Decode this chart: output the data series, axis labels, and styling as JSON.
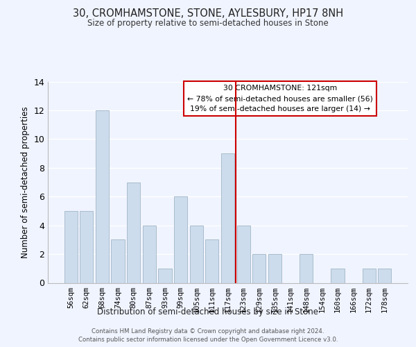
{
  "title": "30, CROMHAMSTONE, STONE, AYLESBURY, HP17 8NH",
  "subtitle": "Size of property relative to semi-detached houses in Stone",
  "xlabel": "Distribution of semi-detached houses by size in Stone",
  "ylabel": "Number of semi-detached properties",
  "categories": [
    "56sqm",
    "62sqm",
    "68sqm",
    "74sqm",
    "80sqm",
    "87sqm",
    "93sqm",
    "99sqm",
    "105sqm",
    "111sqm",
    "117sqm",
    "123sqm",
    "129sqm",
    "135sqm",
    "141sqm",
    "148sqm",
    "154sqm",
    "160sqm",
    "166sqm",
    "172sqm",
    "178sqm"
  ],
  "values": [
    5,
    5,
    12,
    3,
    7,
    4,
    1,
    6,
    4,
    3,
    9,
    4,
    2,
    2,
    0,
    2,
    0,
    1,
    0,
    1,
    1
  ],
  "bar_color": "#ccdcec",
  "bar_edge_color": "#aabccc",
  "highlight_index": 11,
  "highlight_line_color": "#cc0000",
  "ylim": [
    0,
    14
  ],
  "yticks": [
    0,
    2,
    4,
    6,
    8,
    10,
    12,
    14
  ],
  "annotation_title": "30 CROMHAMSTONE: 121sqm",
  "annotation_line1": "← 78% of semi-detached houses are smaller (56)",
  "annotation_line2": "19% of semi-detached houses are larger (14) →",
  "annotation_box_color": "#ffffff",
  "annotation_box_edge": "#cc0000",
  "footer_line1": "Contains HM Land Registry data © Crown copyright and database right 2024.",
  "footer_line2": "Contains public sector information licensed under the Open Government Licence v3.0.",
  "background_color": "#f0f4ff",
  "grid_color": "#ffffff"
}
